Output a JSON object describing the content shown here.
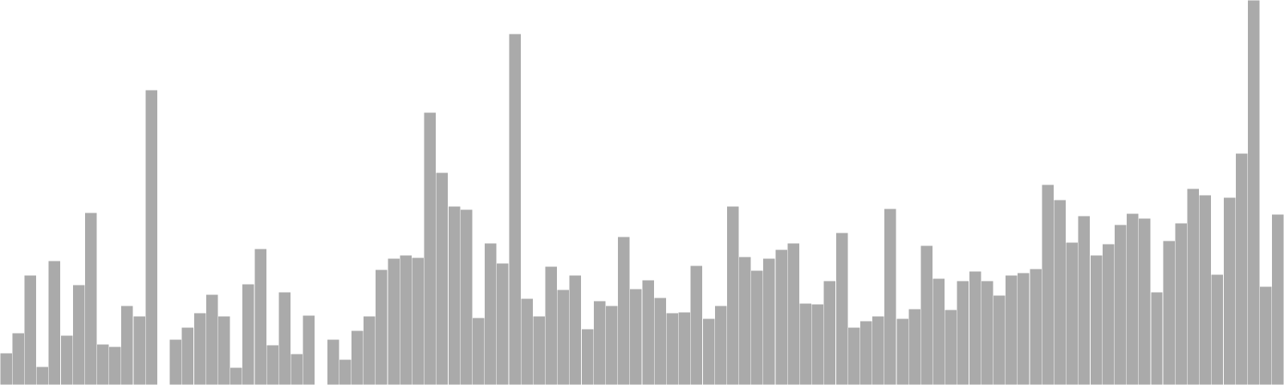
{
  "chart_data": {
    "type": "bar",
    "bar_color": "#aaaaaa",
    "background": "#ffffff",
    "grid": false,
    "axes_visible": false,
    "title": "",
    "xlabel": "",
    "ylabel": "",
    "ylim": [
      0,
      480
    ],
    "values": [
      40,
      65,
      137,
      23,
      155,
      62,
      125,
      215,
      51,
      48,
      99,
      86,
      368,
      null,
      57,
      72,
      90,
      113,
      86,
      22,
      126,
      170,
      50,
      116,
      39,
      87,
      null,
      57,
      32,
      68,
      86,
      144,
      158,
      162,
      159,
      340,
      265,
      223,
      219,
      84,
      177,
      152,
      438,
      108,
      86,
      148,
      119,
      137,
      70,
      105,
      99,
      185,
      120,
      131,
      109,
      90,
      91,
      149,
      83,
      99,
      223,
      160,
      143,
      158,
      169,
      177,
      102,
      101,
      130,
      190,
      72,
      80,
      86,
      220,
      83,
      95,
      174,
      133,
      94,
      130,
      142,
      130,
      112,
      137,
      140,
      145,
      250,
      231,
      178,
      211,
      162,
      176,
      200,
      214,
      208,
      116,
      180,
      202,
      245,
      237,
      138,
      234,
      289,
      480,
      123,
      213
    ]
  }
}
